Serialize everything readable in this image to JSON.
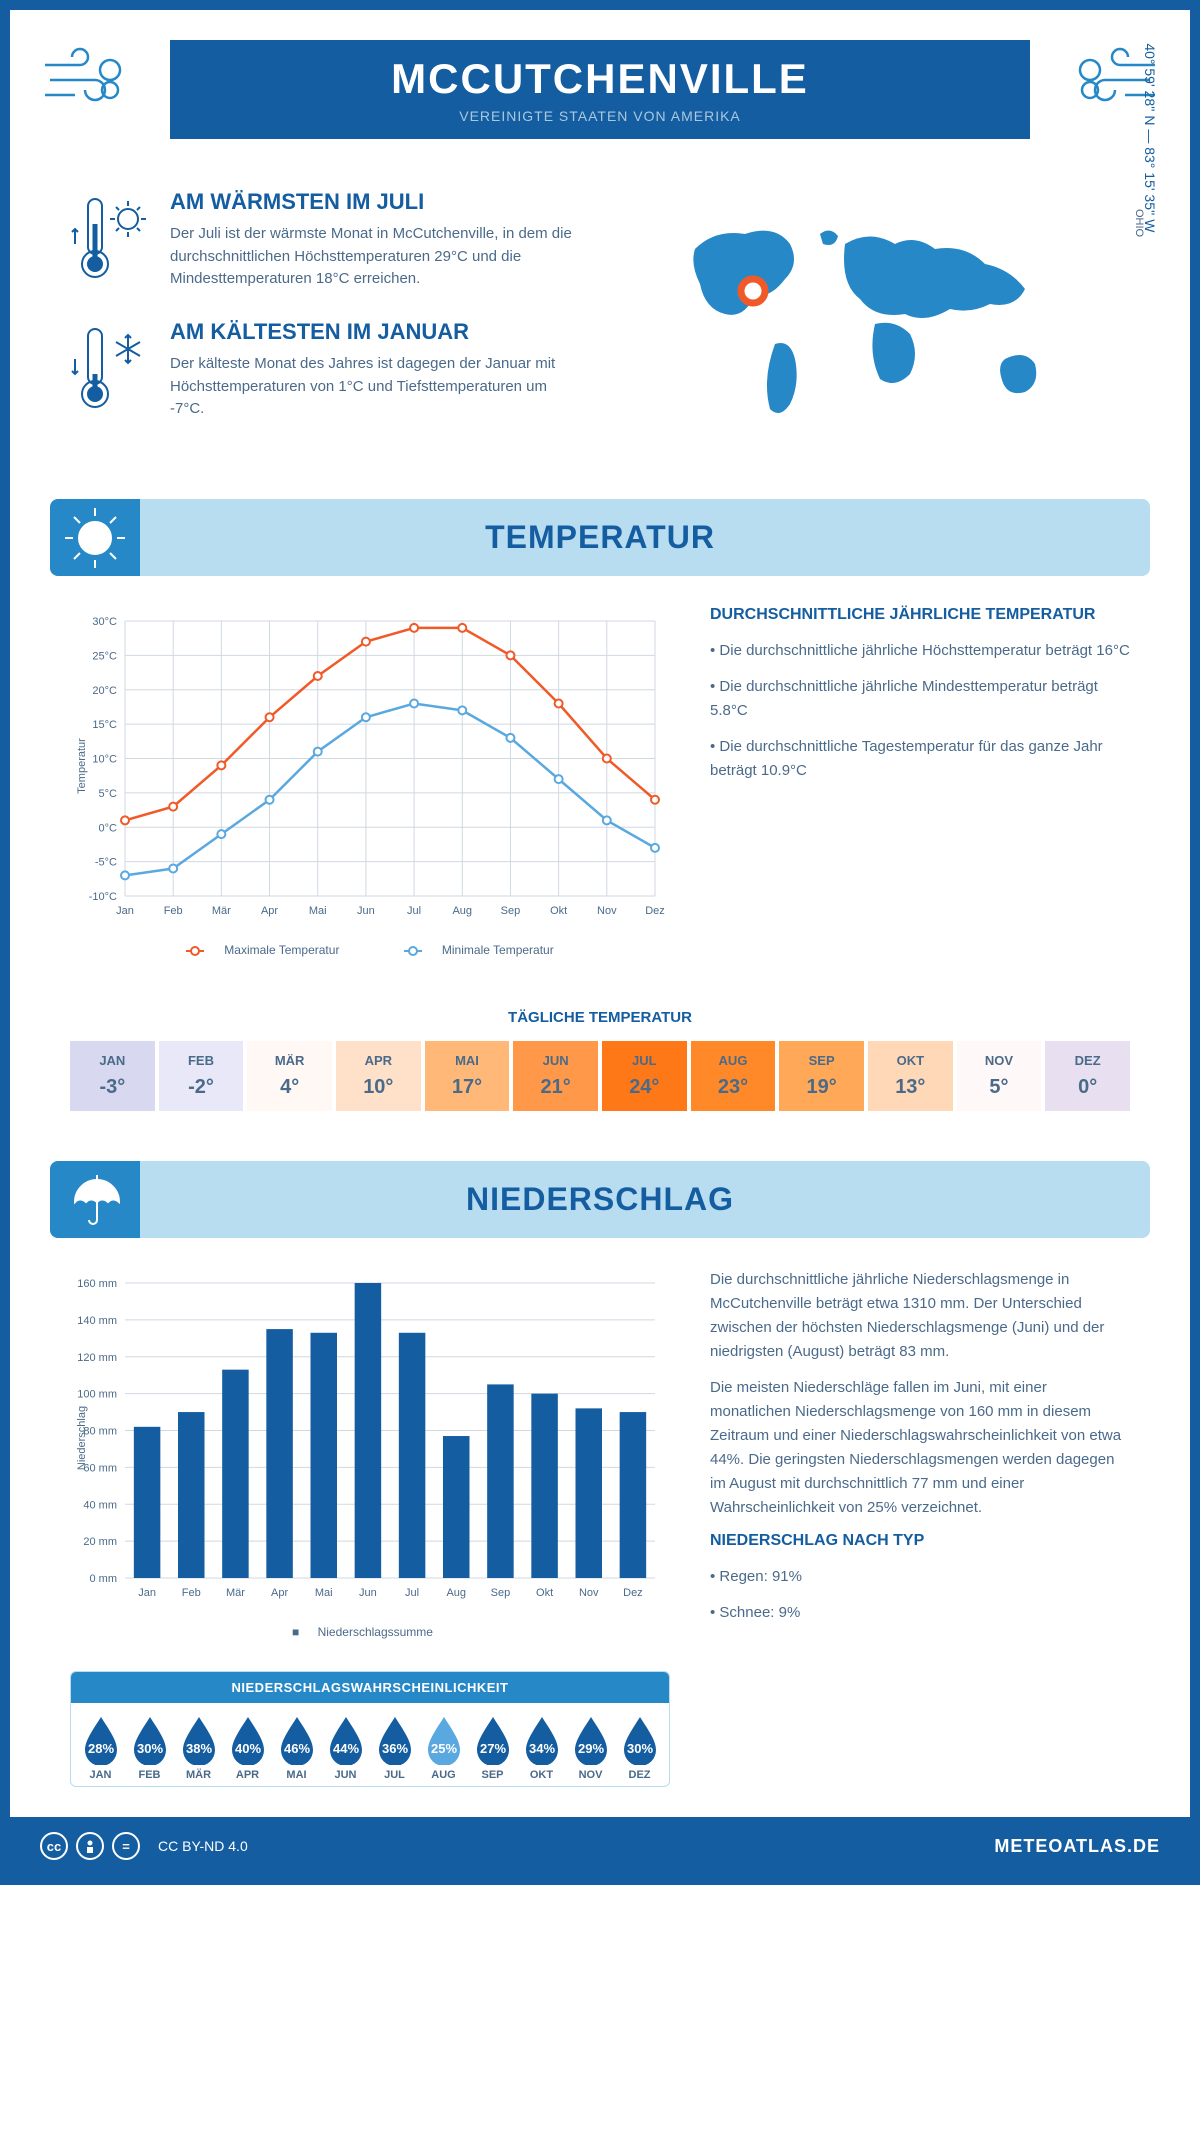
{
  "header": {
    "title": "MCCUTCHENVILLE",
    "subtitle": "VEREINIGTE STAATEN VON AMERIKA"
  },
  "colors": {
    "primary": "#145da0",
    "accent": "#2788c8",
    "light": "#b8dcf0",
    "text": "#4a6a8a",
    "orange": "#f05a28",
    "lightblue": "#5aa8e0",
    "marker": "#f05a28"
  },
  "intro": {
    "warm": {
      "title": "AM WÄRMSTEN IM JULI",
      "text": "Der Juli ist der wärmste Monat in McCutchenville, in dem die durchschnittlichen Höchsttemperaturen 29°C und die Mindesttemperaturen 18°C erreichen."
    },
    "cold": {
      "title": "AM KÄLTESTEN IM JANUAR",
      "text": "Der kälteste Monat des Jahres ist dagegen der Januar mit Höchsttemperaturen von 1°C und Tiefsttemperaturen um -7°C."
    },
    "coords": "40° 59' 28'' N — 83° 15' 35'' W",
    "region": "OHIO"
  },
  "months": [
    "Jan",
    "Feb",
    "Mär",
    "Apr",
    "Mai",
    "Jun",
    "Jul",
    "Aug",
    "Sep",
    "Okt",
    "Nov",
    "Dez"
  ],
  "months_upper": [
    "JAN",
    "FEB",
    "MÄR",
    "APR",
    "MAI",
    "JUN",
    "JUL",
    "AUG",
    "SEP",
    "OKT",
    "NOV",
    "DEZ"
  ],
  "temp": {
    "section_title": "TEMPERATUR",
    "line_chart": {
      "ylabel": "Temperatur",
      "ymin": -10,
      "ymax": 30,
      "ystep": 5,
      "max_series": {
        "label": "Maximale Temperatur",
        "color": "#f05a28",
        "values": [
          1,
          3,
          9,
          16,
          22,
          27,
          29,
          29,
          25,
          18,
          10,
          4
        ]
      },
      "min_series": {
        "label": "Minimale Temperatur",
        "color": "#5aa8e0",
        "values": [
          -7,
          -6,
          -1,
          4,
          11,
          16,
          18,
          17,
          13,
          7,
          1,
          -3
        ]
      }
    },
    "info": {
      "title": "DURCHSCHNITTLICHE JÄHRLICHE TEMPERATUR",
      "b1": "• Die durchschnittliche jährliche Höchsttemperatur beträgt 16°C",
      "b2": "• Die durchschnittliche jährliche Mindesttemperatur beträgt 5.8°C",
      "b3": "• Die durchschnittliche Tagestemperatur für das ganze Jahr beträgt 10.9°C"
    },
    "daily": {
      "title": "TÄGLICHE TEMPERATUR",
      "values": [
        "-3°",
        "-2°",
        "4°",
        "10°",
        "17°",
        "21°",
        "24°",
        "23°",
        "19°",
        "13°",
        "5°",
        "0°"
      ],
      "colors": [
        "#d8d8f0",
        "#e8e8f8",
        "#fff8f5",
        "#ffe0c8",
        "#ffb878",
        "#ff9848",
        "#ff7818",
        "#ff8828",
        "#ffa858",
        "#ffd8b8",
        "#fff8f8",
        "#e8e0f0"
      ]
    }
  },
  "precip": {
    "section_title": "NIEDERSCHLAG",
    "bar_chart": {
      "ylabel": "Niederschlag",
      "ymin": 0,
      "ymax": 160,
      "ystep": 20,
      "legend": "Niederschlagssumme",
      "color": "#145da0",
      "values": [
        82,
        90,
        113,
        135,
        133,
        160,
        133,
        77,
        105,
        100,
        92,
        90
      ]
    },
    "text1": "Die durchschnittliche jährliche Niederschlagsmenge in McCutchenville beträgt etwa 1310 mm. Der Unterschied zwischen der höchsten Niederschlagsmenge (Juni) und der niedrigsten (August) beträgt 83 mm.",
    "text2": "Die meisten Niederschläge fallen im Juni, mit einer monatlichen Niederschlagsmenge von 160 mm in diesem Zeitraum und einer Niederschlagswahrscheinlichkeit von etwa 44%. Die geringsten Niederschlagsmengen werden dagegen im August mit durchschnittlich 77 mm und einer Wahrscheinlichkeit von 25% verzeichnet.",
    "bytype": {
      "title": "NIEDERSCHLAG NACH TYP",
      "b1": "• Regen: 91%",
      "b2": "• Schnee: 9%"
    },
    "prob": {
      "title": "NIEDERSCHLAGSWAHRSCHEINLICHKEIT",
      "values": [
        "28%",
        "30%",
        "38%",
        "40%",
        "46%",
        "44%",
        "36%",
        "25%",
        "27%",
        "34%",
        "29%",
        "30%"
      ],
      "min_index": 7
    }
  },
  "footer": {
    "license": "CC BY-ND 4.0",
    "brand": "METEOATLAS.DE"
  }
}
